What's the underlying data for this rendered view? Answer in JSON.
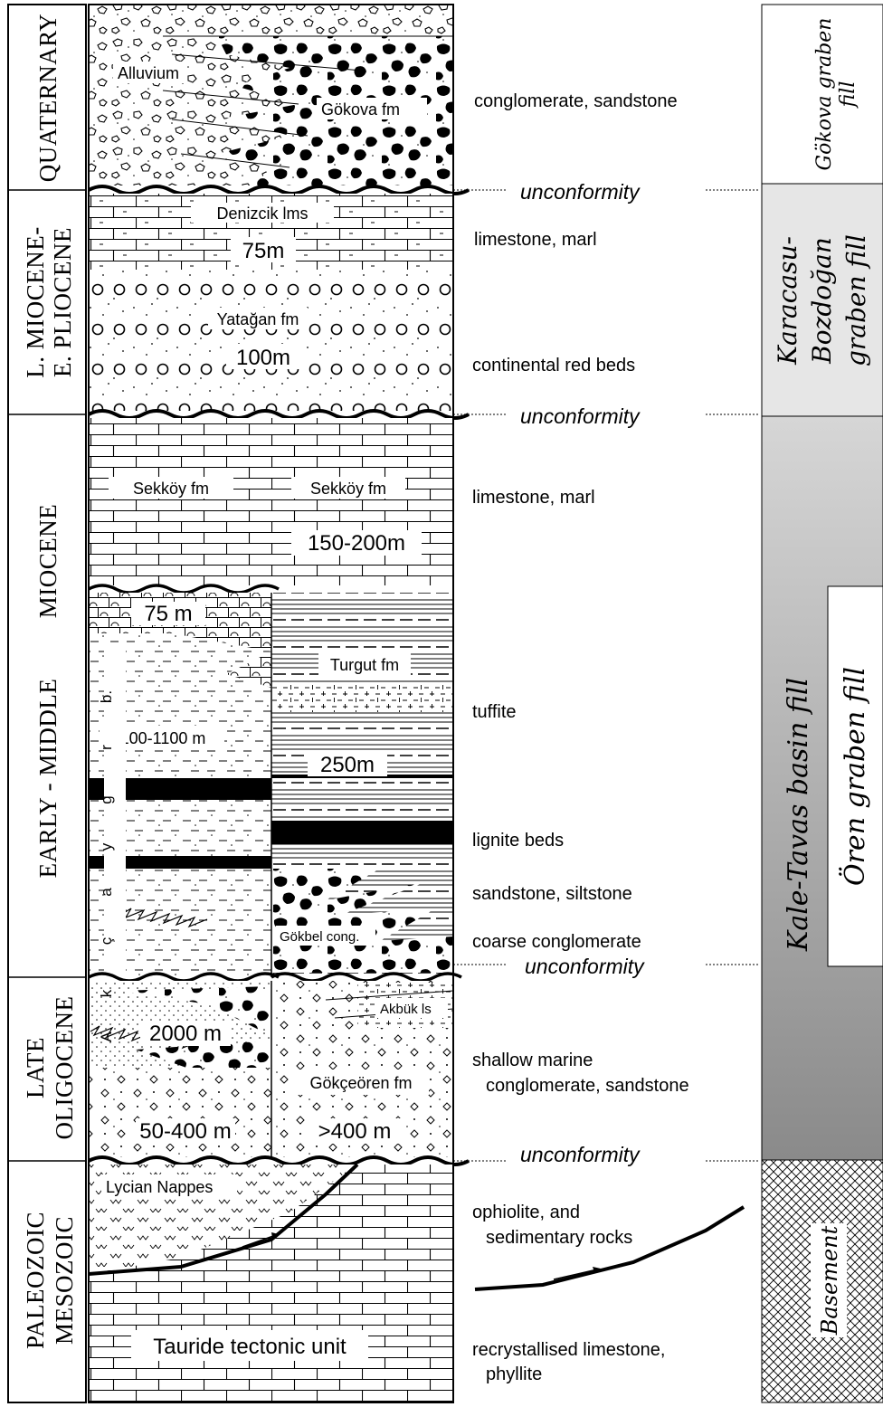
{
  "ages": {
    "quaternary": "QUATERNARY",
    "l_miocene_line1": "L. MIOCENE-",
    "l_miocene_line2": "E. PLIOCENE",
    "early_middle_miocene_line1": "MIOCENE",
    "early_middle_miocene_line2": "EARLY - MIDDLE",
    "late_oligocene_line1": "LATE",
    "late_oligocene_line2": "OLIGOCENE",
    "paleozoic_line1": "PALEOZOIC",
    "paleozoic_line2": "MESOZOIC"
  },
  "formations": {
    "alluvium": "Alluvium",
    "gokova": "Gökova fm",
    "denizcik": "Denizcik lms",
    "denizcik_thickness": "75m",
    "yatagan": "Yatağan fm",
    "yatagan_thickness": "100m",
    "sekkoy_left": "Sekköy fm",
    "sekkoy_right": "Sekköy fm",
    "sekkoy_thickness": "150-200m",
    "lime_75": "75 m",
    "turgut": "Turgut fm",
    "akcaygrb_thickness": "100-1100 m",
    "turgut_thickness": "250m",
    "gokbel": "Gökbel cong.",
    "akbuk": "Akbük ls",
    "left_2000": "2000 m",
    "gokceoren": "Gökçeören fm",
    "left_50_400": "50-400 m",
    "right_400": ">400 m",
    "lycian": "Lycian Nappes",
    "tauride": "Tauride tectonic unit",
    "vertical_letters": [
      "A",
      "k",
      "ç",
      "a",
      "y",
      "g",
      "r",
      "b."
    ]
  },
  "descriptions": {
    "d1": "conglomerate, sandstone",
    "d2": "limestone, marl",
    "d3": "continental red beds",
    "d4": "limestone, marl",
    "d5": "tuffite",
    "d6": "lignite beds",
    "d7": "sandstone, siltstone",
    "d8": "coarse conglomerate",
    "d9_line1": "shallow  marine",
    "d9_line2": "conglomerate, sandstone",
    "d10_line1": "ophiolite, and",
    "d10_line2": "sedimentary rocks",
    "d11_line1": "recrystallised limestone,",
    "d11_line2": "phyllite"
  },
  "unconformities": [
    "unconformity",
    "unconformity",
    "unconformity",
    "unconformity"
  ],
  "basins": {
    "gokova_line1": "Gökova graben",
    "gokova_line2": "fill",
    "karacasu_line1": "Karacasu-",
    "karacasu_line2": "Bozdoğan",
    "karacasu_line3": "graben fill",
    "kale_tavas": "Kale-Tavas basin fill",
    "oren": "Ören graben fill",
    "basement": "Basement"
  },
  "colors": {
    "gokova_box": "#ffffff",
    "karacasu_box": "#e6e6e6",
    "kale_top": "#d6d6d6",
    "kale_bottom": "#8a8a8a",
    "oren_box": "#ffffff",
    "lithology_black": "#000000"
  }
}
